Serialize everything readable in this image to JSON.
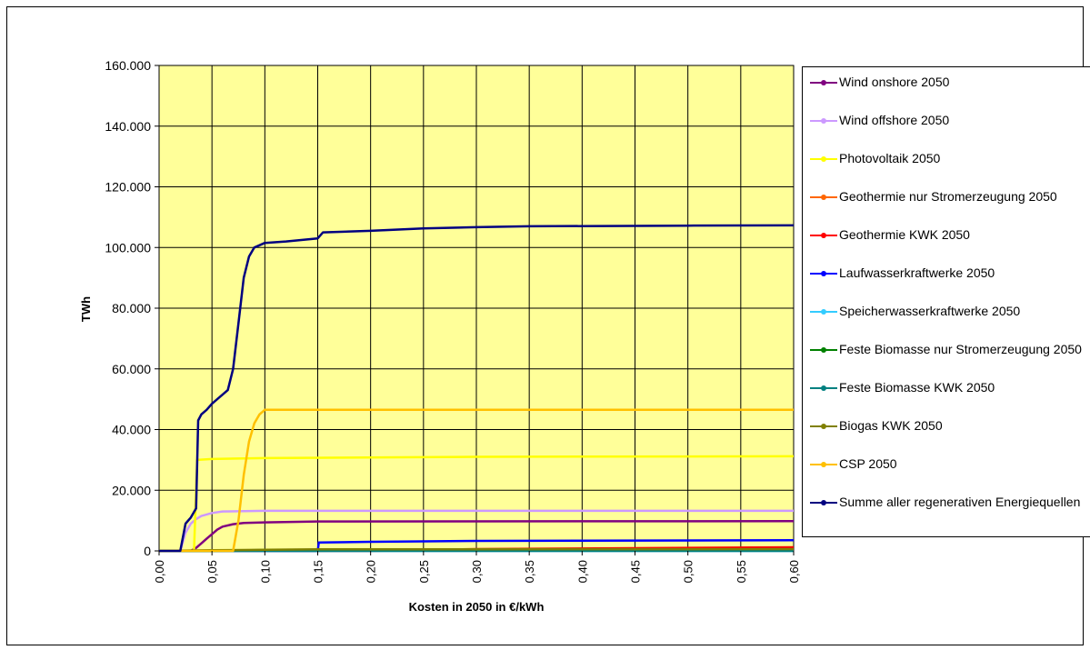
{
  "chart_data": {
    "type": "line",
    "xlabel": "Kosten in 2050 in €/kWh",
    "ylabel": "TWh",
    "xlim": [
      0,
      0.6
    ],
    "ylim": [
      0,
      160000
    ],
    "grid": true,
    "legend_position": "right",
    "plot_background": "#FFFF99",
    "y_ticks": [
      "0",
      "20.000",
      "40.000",
      "60.000",
      "80.000",
      "100.000",
      "120.000",
      "140.000",
      "160.000"
    ],
    "x_ticks": [
      "0,00",
      "0,05",
      "0,10",
      "0,15",
      "0,20",
      "0,25",
      "0,30",
      "0,35",
      "0,40",
      "0,45",
      "0,50",
      "0,55",
      "0,60"
    ],
    "series": [
      {
        "name": "Wind onshore 2050",
        "color": "#800080",
        "points": [
          [
            0,
            0
          ],
          [
            0.03,
            0
          ],
          [
            0.035,
            1000
          ],
          [
            0.04,
            2500
          ],
          [
            0.045,
            4000
          ],
          [
            0.05,
            5500
          ],
          [
            0.055,
            7000
          ],
          [
            0.06,
            8000
          ],
          [
            0.07,
            8800
          ],
          [
            0.08,
            9200
          ],
          [
            0.1,
            9400
          ],
          [
            0.15,
            9700
          ],
          [
            0.6,
            9800
          ]
        ]
      },
      {
        "name": "Wind offshore 2050",
        "color": "#CC99FF",
        "points": [
          [
            0,
            0
          ],
          [
            0.02,
            0
          ],
          [
            0.025,
            6000
          ],
          [
            0.03,
            9000
          ],
          [
            0.035,
            10500
          ],
          [
            0.04,
            11500
          ],
          [
            0.05,
            12500
          ],
          [
            0.06,
            13000
          ],
          [
            0.1,
            13200
          ],
          [
            0.6,
            13200
          ]
        ]
      },
      {
        "name": "Photovoltaik 2050",
        "color": "#FFFF00",
        "points": [
          [
            0,
            0
          ],
          [
            0.033,
            0
          ],
          [
            0.036,
            30000
          ],
          [
            0.05,
            30300
          ],
          [
            0.1,
            30600
          ],
          [
            0.3,
            31000
          ],
          [
            0.6,
            31200
          ]
        ]
      },
      {
        "name": "Geothermie nur Stromerzeugung 2050",
        "color": "#FF6600",
        "points": [
          [
            0,
            0
          ],
          [
            0.15,
            0
          ],
          [
            0.2,
            300
          ],
          [
            0.6,
            800
          ]
        ]
      },
      {
        "name": "Geothermie KWK 2050",
        "color": "#FF0000",
        "points": [
          [
            0,
            0
          ],
          [
            0.2,
            0
          ],
          [
            0.3,
            600
          ],
          [
            0.6,
            1200
          ]
        ]
      },
      {
        "name": "Laufwasserkraftwerke 2050",
        "color": "#0000FF",
        "points": [
          [
            0,
            0
          ],
          [
            0.15,
            0
          ],
          [
            0.151,
            2800
          ],
          [
            0.2,
            3000
          ],
          [
            0.3,
            3300
          ],
          [
            0.6,
            3500
          ]
        ]
      },
      {
        "name": "Speicherwasserkraftwerke 2050",
        "color": "#33CCFF",
        "points": [
          [
            0,
            0
          ],
          [
            0.6,
            0
          ]
        ]
      },
      {
        "name": "Feste Biomasse nur Stromerzeugung 2050",
        "color": "#008000",
        "points": [
          [
            0,
            0
          ],
          [
            0.05,
            0
          ],
          [
            0.1,
            300
          ],
          [
            0.6,
            400
          ]
        ]
      },
      {
        "name": "Feste Biomasse KWK 2050",
        "color": "#008080",
        "points": [
          [
            0,
            0
          ],
          [
            0.6,
            0
          ]
        ]
      },
      {
        "name": "Biogas KWK 2050",
        "color": "#808000",
        "points": [
          [
            0,
            0
          ],
          [
            0.05,
            200
          ],
          [
            0.15,
            500
          ],
          [
            0.6,
            600
          ]
        ]
      },
      {
        "name": "CSP 2050",
        "color": "#FFC000",
        "points": [
          [
            0,
            0
          ],
          [
            0.07,
            0
          ],
          [
            0.075,
            10000
          ],
          [
            0.08,
            25000
          ],
          [
            0.085,
            36000
          ],
          [
            0.09,
            42000
          ],
          [
            0.095,
            45000
          ],
          [
            0.1,
            46500
          ],
          [
            0.6,
            46500
          ]
        ]
      },
      {
        "name": "Summe aller regenerativen Energiequellen",
        "color": "#000080",
        "points": [
          [
            0,
            0
          ],
          [
            0.02,
            0
          ],
          [
            0.025,
            9000
          ],
          [
            0.03,
            11000
          ],
          [
            0.035,
            14000
          ],
          [
            0.037,
            43000
          ],
          [
            0.04,
            45000
          ],
          [
            0.045,
            46500
          ],
          [
            0.05,
            48500
          ],
          [
            0.055,
            50000
          ],
          [
            0.06,
            51500
          ],
          [
            0.065,
            53000
          ],
          [
            0.07,
            60000
          ],
          [
            0.075,
            75000
          ],
          [
            0.08,
            90000
          ],
          [
            0.085,
            97000
          ],
          [
            0.09,
            100000
          ],
          [
            0.1,
            101500
          ],
          [
            0.12,
            102000
          ],
          [
            0.15,
            103000
          ],
          [
            0.155,
            105000
          ],
          [
            0.2,
            105500
          ],
          [
            0.25,
            106300
          ],
          [
            0.3,
            106700
          ],
          [
            0.35,
            107000
          ],
          [
            0.5,
            107200
          ],
          [
            0.6,
            107300
          ]
        ]
      }
    ]
  }
}
